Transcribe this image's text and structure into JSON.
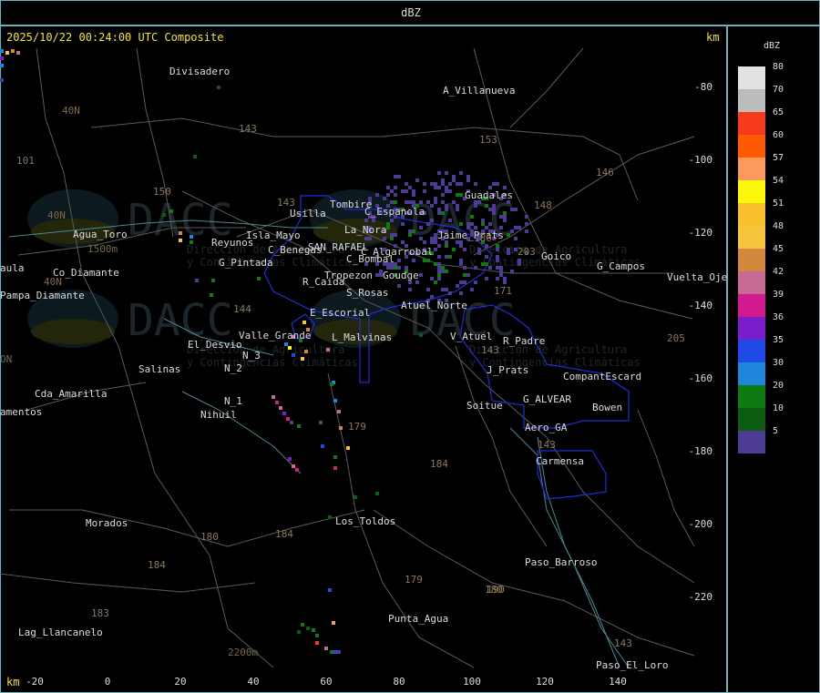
{
  "header": {
    "title": "dBZ"
  },
  "map": {
    "timestamp": "2025/10/22 00:24:00 UTC Composite",
    "unit_label": "km",
    "x_ticks": [
      "-20",
      "0",
      "20",
      "40",
      "60",
      "80",
      "100",
      "120",
      "140"
    ],
    "y_ticks": [
      "-80",
      "-100",
      "-120",
      "-140",
      "-160",
      "-180",
      "-200",
      "-220"
    ],
    "watermark": {
      "brand": "DACC",
      "line1": "Dirección de Agricultura",
      "line2": "y Contingencias Climáticas"
    },
    "places": [
      "Divisadero",
      "A_Villanueva",
      "Usilla",
      "Tombire",
      "C_Espanola",
      "Guadales",
      "La_Nora",
      "SAN_RAFAEL",
      "C_Algarrobal",
      "Reyunos",
      "Isla_Mayo",
      "C_Benegas",
      "C_Bombal",
      "Agua_Toro",
      "G_Pintada",
      "Tropezon",
      "Goudge",
      "Jaime_Prats",
      "Goico",
      "G_Campos",
      "Vuelta_Ojeda",
      "aula",
      "Pampa_Diamante",
      "Co_Diamante",
      "R_Caida",
      "S_Rosas",
      "E_Escorial",
      "Atuel_Norte",
      "Valle_Grande",
      "L_Malvinas",
      "V_Atuel",
      "R_Padre",
      "El_Desvio",
      "N_3",
      "N_2",
      "Salinas",
      "J_Prats",
      "CompantEscard",
      "Cda_Amarilla",
      "N_1",
      "Nihuil",
      "G_ALVEAR",
      "Bowen",
      "amentos",
      "Soitue",
      "Aero_GA",
      "Carmensa",
      "Morados",
      "Los_Toldos",
      "Paso_Barroso",
      "Punta_Agua",
      "Lag_Llancanelo",
      "Paso_El_Loro",
      "40N",
      "40N",
      "40N",
      "ON",
      "1500m",
      "2200m"
    ],
    "road_numbers": [
      "101",
      "143",
      "153",
      "146",
      "150",
      "143",
      "144",
      "148",
      "203",
      "180",
      "171",
      "143",
      "179",
      "184",
      "143",
      "184",
      "180",
      "180",
      "184",
      "179",
      "190",
      "183",
      "143",
      "205"
    ]
  },
  "legend": {
    "title": "dBZ",
    "entries": [
      {
        "label": "80",
        "color": "#e2e2e2"
      },
      {
        "label": "70",
        "color": "#bcbcbc"
      },
      {
        "label": "65",
        "color": "#f83a1c"
      },
      {
        "label": "60",
        "color": "#fd5a02"
      },
      {
        "label": "57",
        "color": "#fc9a5c"
      },
      {
        "label": "54",
        "color": "#fdf70a"
      },
      {
        "label": "51",
        "color": "#f8c02a"
      },
      {
        "label": "48",
        "color": "#f6c43a"
      },
      {
        "label": "45",
        "color": "#d4873e"
      },
      {
        "label": "42",
        "color": "#c76a93"
      },
      {
        "label": "39",
        "color": "#d2198f"
      },
      {
        "label": "36",
        "color": "#7a1dcb"
      },
      {
        "label": "35",
        "color": "#1f4ae8"
      },
      {
        "label": "30",
        "color": "#1f86dd"
      },
      {
        "label": "20",
        "color": "#0d7a12"
      },
      {
        "label": "10",
        "color": "#0c5d12"
      },
      {
        "label": "5",
        "color": "#4e3c94"
      }
    ]
  }
}
